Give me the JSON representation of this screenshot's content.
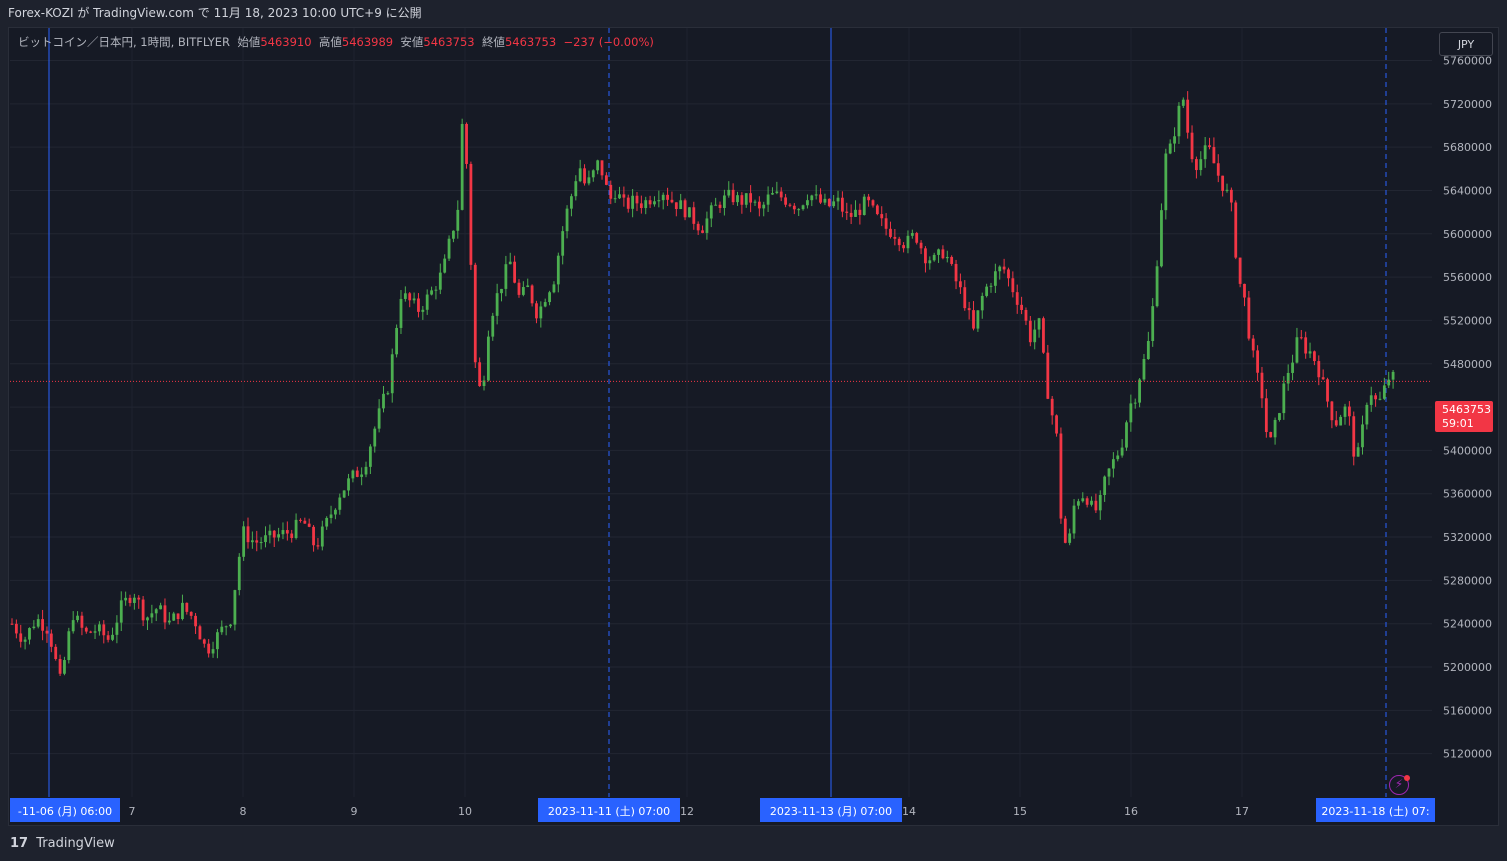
{
  "header": {
    "published_line": "Forex-KOZI が TradingView.com で 11月 18, 2023 10:00 UTC+9 に公開"
  },
  "legend": {
    "symbol": "ビットコイン／日本円, 1時間, BITFLYER",
    "open_label": "始値",
    "open_value": "5463910",
    "high_label": "高値",
    "high_value": "5463989",
    "low_label": "安値",
    "low_value": "5463753",
    "close_label": "終値",
    "close_value": "5463753",
    "change": "−237 (−0.00%)"
  },
  "currency_button": "JPY",
  "last_price": {
    "price": "5463753",
    "countdown": "59:01"
  },
  "footer": {
    "brand": "TradingView",
    "logo": "17"
  },
  "colors": {
    "background": "#161a25",
    "up": "#4caf50",
    "down": "#f23645",
    "session_line": "#2962ff",
    "text": "#d1d4dc"
  },
  "icons": {
    "flash": "lightning-bolt-icon",
    "brand": "tradingview-logo-icon"
  },
  "chart_data": {
    "type": "candlestick",
    "title": "ビットコイン／日本円, 1時間, BITFLYER",
    "interval": "1h",
    "ylim": [
      5080000,
      5790000
    ],
    "y_ticks": [
      5120000,
      5160000,
      5200000,
      5240000,
      5280000,
      5320000,
      5360000,
      5400000,
      5440000,
      5480000,
      5520000,
      5560000,
      5600000,
      5640000,
      5680000,
      5720000,
      5760000
    ],
    "x_tick_labels": [
      "7",
      "8",
      "9",
      "10",
      "12",
      "14",
      "15",
      "16",
      "17"
    ],
    "session_markers": [
      {
        "label": "-11-06 (月)  06:00",
        "style": "solid"
      },
      {
        "label": "2023-11-11 (土)  07:00",
        "style": "dashed"
      },
      {
        "label": "2023-11-13 (月)  07:00",
        "style": "solid"
      },
      {
        "label": "2023-11-18 (土)  07:",
        "style": "dashed"
      }
    ],
    "last_price": 5463753,
    "grid": true,
    "close_path": [
      [
        0,
        5240000
      ],
      [
        10,
        5225000
      ],
      [
        20,
        5245000
      ],
      [
        30,
        5235000
      ],
      [
        40,
        5185000
      ],
      [
        50,
        5250000
      ],
      [
        60,
        5230000
      ],
      [
        70,
        5235000
      ],
      [
        80,
        5225000
      ],
      [
        90,
        5255000
      ],
      [
        100,
        5270000
      ],
      [
        110,
        5245000
      ],
      [
        120,
        5255000
      ],
      [
        130,
        5240000
      ],
      [
        140,
        5255000
      ],
      [
        150,
        5245000
      ],
      [
        160,
        5215000
      ],
      [
        170,
        5230000
      ],
      [
        180,
        5245000
      ],
      [
        190,
        5325000
      ],
      [
        200,
        5315000
      ],
      [
        210,
        5318000
      ],
      [
        220,
        5322000
      ],
      [
        230,
        5325000
      ],
      [
        240,
        5335000
      ],
      [
        250,
        5310000
      ],
      [
        260,
        5335000
      ],
      [
        270,
        5360000
      ],
      [
        280,
        5375000
      ],
      [
        290,
        5385000
      ],
      [
        300,
        5425000
      ],
      [
        310,
        5460000
      ],
      [
        315,
        5500000
      ],
      [
        320,
        5545000
      ],
      [
        325,
        5540000
      ],
      [
        335,
        5530000
      ],
      [
        345,
        5545000
      ],
      [
        355,
        5565000
      ],
      [
        362,
        5600000
      ],
      [
        367,
        5620000
      ],
      [
        372,
        5725000
      ],
      [
        377,
        5600000
      ],
      [
        382,
        5470000
      ],
      [
        387,
        5450000
      ],
      [
        392,
        5510000
      ],
      [
        397,
        5535000
      ],
      [
        402,
        5550000
      ],
      [
        410,
        5575000
      ],
      [
        418,
        5540000
      ],
      [
        425,
        5550000
      ],
      [
        433,
        5525000
      ],
      [
        440,
        5545000
      ],
      [
        447,
        5560000
      ],
      [
        452,
        5595000
      ],
      [
        457,
        5620000
      ],
      [
        462,
        5640000
      ],
      [
        467,
        5665000
      ],
      [
        472,
        5645000
      ],
      [
        477,
        5650000
      ],
      [
        482,
        5665000
      ],
      [
        487,
        5655000
      ],
      [
        492,
        5630000
      ],
      [
        497,
        5640000
      ],
      [
        505,
        5625000
      ],
      [
        512,
        5630000
      ],
      [
        520,
        5628000
      ],
      [
        528,
        5635000
      ],
      [
        536,
        5640000
      ],
      [
        544,
        5630000
      ],
      [
        552,
        5625000
      ],
      [
        560,
        5615000
      ],
      [
        568,
        5605000
      ],
      [
        576,
        5620000
      ],
      [
        584,
        5630000
      ],
      [
        592,
        5635000
      ],
      [
        600,
        5630000
      ],
      [
        608,
        5632000
      ],
      [
        616,
        5620000
      ],
      [
        624,
        5635000
      ],
      [
        632,
        5635000
      ],
      [
        640,
        5630000
      ],
      [
        648,
        5625000
      ],
      [
        656,
        5638000
      ],
      [
        664,
        5630000
      ],
      [
        672,
        5625000
      ],
      [
        680,
        5630000
      ],
      [
        688,
        5615000
      ],
      [
        696,
        5620000
      ],
      [
        704,
        5630000
      ],
      [
        712,
        5615000
      ],
      [
        720,
        5605000
      ],
      [
        728,
        5600000
      ],
      [
        736,
        5590000
      ],
      [
        744,
        5600000
      ],
      [
        752,
        5580000
      ],
      [
        760,
        5575000
      ],
      [
        768,
        5585000
      ],
      [
        776,
        5560000
      ],
      [
        784,
        5540000
      ],
      [
        792,
        5510000
      ],
      [
        800,
        5545000
      ],
      [
        808,
        5560000
      ],
      [
        816,
        5570000
      ],
      [
        824,
        5550000
      ],
      [
        832,
        5530000
      ],
      [
        840,
        5500000
      ],
      [
        845,
        5525000
      ],
      [
        850,
        5480000
      ],
      [
        855,
        5440000
      ],
      [
        860,
        5420000
      ],
      [
        865,
        5320000
      ],
      [
        870,
        5310000
      ],
      [
        875,
        5350000
      ],
      [
        880,
        5360000
      ],
      [
        885,
        5358000
      ],
      [
        890,
        5345000
      ],
      [
        895,
        5345000
      ],
      [
        900,
        5370000
      ],
      [
        905,
        5385000
      ],
      [
        910,
        5395000
      ],
      [
        915,
        5410000
      ],
      [
        920,
        5440000
      ],
      [
        925,
        5450000
      ],
      [
        930,
        5475000
      ],
      [
        935,
        5490000
      ],
      [
        940,
        5535000
      ],
      [
        945,
        5600000
      ],
      [
        950,
        5670000
      ],
      [
        955,
        5680000
      ],
      [
        960,
        5710000
      ],
      [
        965,
        5725000
      ],
      [
        970,
        5680000
      ],
      [
        975,
        5665000
      ],
      [
        980,
        5670000
      ],
      [
        985,
        5680000
      ],
      [
        990,
        5665000
      ],
      [
        995,
        5650000
      ],
      [
        1000,
        5640000
      ],
      [
        1005,
        5620000
      ],
      [
        1010,
        5560000
      ],
      [
        1015,
        5540000
      ],
      [
        1020,
        5500000
      ],
      [
        1025,
        5470000
      ],
      [
        1030,
        5450000
      ],
      [
        1035,
        5400000
      ],
      [
        1040,
        5420000
      ],
      [
        1045,
        5445000
      ],
      [
        1050,
        5470000
      ],
      [
        1055,
        5485000
      ],
      [
        1060,
        5505000
      ],
      [
        1065,
        5495000
      ],
      [
        1070,
        5490000
      ],
      [
        1075,
        5480000
      ],
      [
        1080,
        5460000
      ],
      [
        1085,
        5440000
      ],
      [
        1090,
        5425000
      ],
      [
        1095,
        5435000
      ],
      [
        1100,
        5440000
      ],
      [
        1105,
        5400000
      ],
      [
        1110,
        5395000
      ],
      [
        1115,
        5445000
      ],
      [
        1120,
        5455000
      ],
      [
        1125,
        5440000
      ],
      [
        1130,
        5455000
      ],
      [
        1135,
        5470000
      ],
      [
        1140,
        5463753
      ]
    ]
  }
}
